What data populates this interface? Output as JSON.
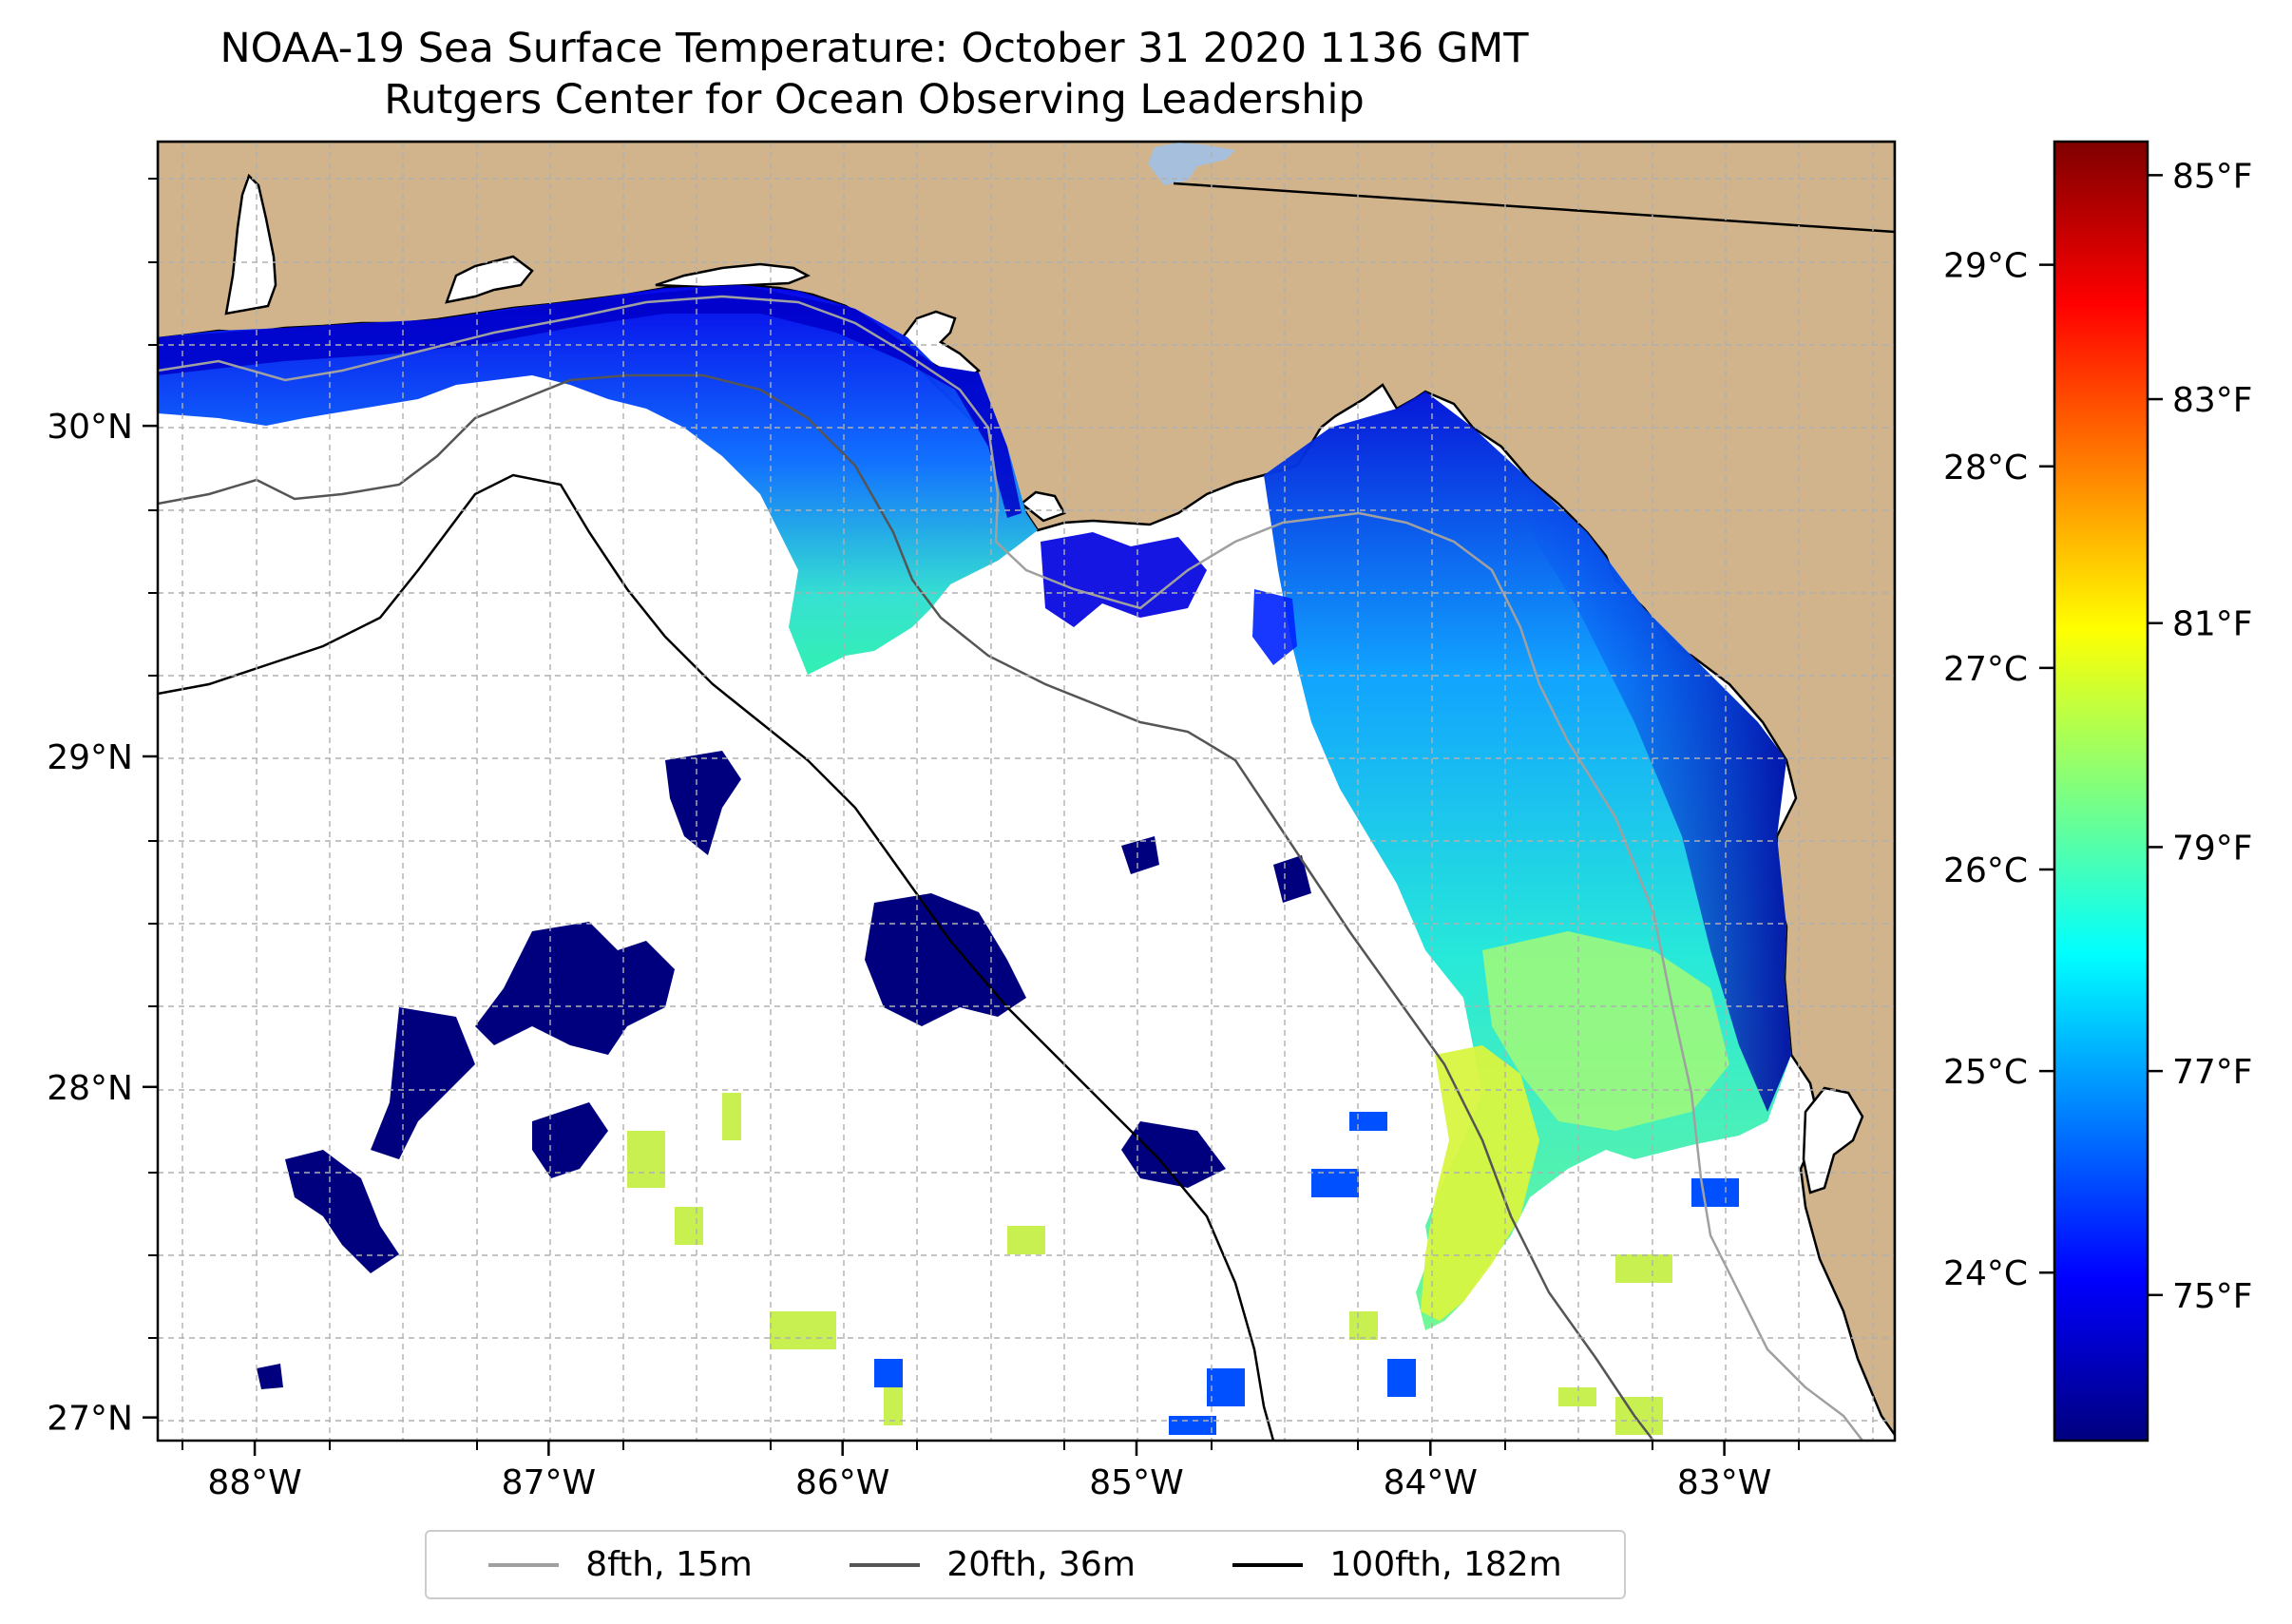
{
  "title": {
    "line1": "NOAA-19 Sea Surface Temperature: October 31 2020 1136 GMT",
    "line2": "Rutgers Center for Ocean Observing Leadership"
  },
  "map": {
    "lon_range": [
      -88.33,
      -82.42
    ],
    "lat_range": [
      26.93,
      30.86
    ],
    "lon_ticks": [
      {
        "value": -88,
        "label": "88°W"
      },
      {
        "value": -87,
        "label": "87°W"
      },
      {
        "value": -86,
        "label": "86°W"
      },
      {
        "value": -85,
        "label": "85°W"
      },
      {
        "value": -84,
        "label": "84°W"
      },
      {
        "value": -83,
        "label": "83°W"
      }
    ],
    "lat_ticks": [
      {
        "value": 27,
        "label": "27°N"
      },
      {
        "value": 28,
        "label": "28°N"
      },
      {
        "value": 29,
        "label": "29°N"
      },
      {
        "value": 30,
        "label": "30°N"
      }
    ],
    "colors": {
      "land": "#d2b48c",
      "water_no_data": "#ffffff",
      "lake": "#a5bfdd",
      "gridline": "#b0b0b0"
    }
  },
  "colorbar": {
    "celsius_ticks": [
      {
        "value": 24,
        "label": "24°C"
      },
      {
        "value": 25,
        "label": "25°C"
      },
      {
        "value": 26,
        "label": "26°C"
      },
      {
        "value": 27,
        "label": "27°C"
      },
      {
        "value": 28,
        "label": "28°C"
      },
      {
        "value": 29,
        "label": "29°C"
      }
    ],
    "fahrenheit_ticks": [
      {
        "value": 75,
        "label": "75°F"
      },
      {
        "value": 77,
        "label": "77°F"
      },
      {
        "value": 79,
        "label": "79°F"
      },
      {
        "value": 81,
        "label": "81°F"
      },
      {
        "value": 83,
        "label": "83°F"
      },
      {
        "value": 85,
        "label": "85°F"
      }
    ],
    "range_f": [
      73.7,
      85.3
    ],
    "colormap": "jet",
    "gradient": [
      "#00007f",
      "#0000ff",
      "#007fff",
      "#00ffff",
      "#7fff7f",
      "#ffff00",
      "#ff7f00",
      "#ff0000",
      "#7f0000"
    ]
  },
  "legend": {
    "items": [
      {
        "label": "8fth, 15m",
        "color": "#a0a0a0"
      },
      {
        "label": "20fth, 36m",
        "color": "#555555"
      },
      {
        "label": "100fth, 182m",
        "color": "#000000"
      }
    ]
  }
}
